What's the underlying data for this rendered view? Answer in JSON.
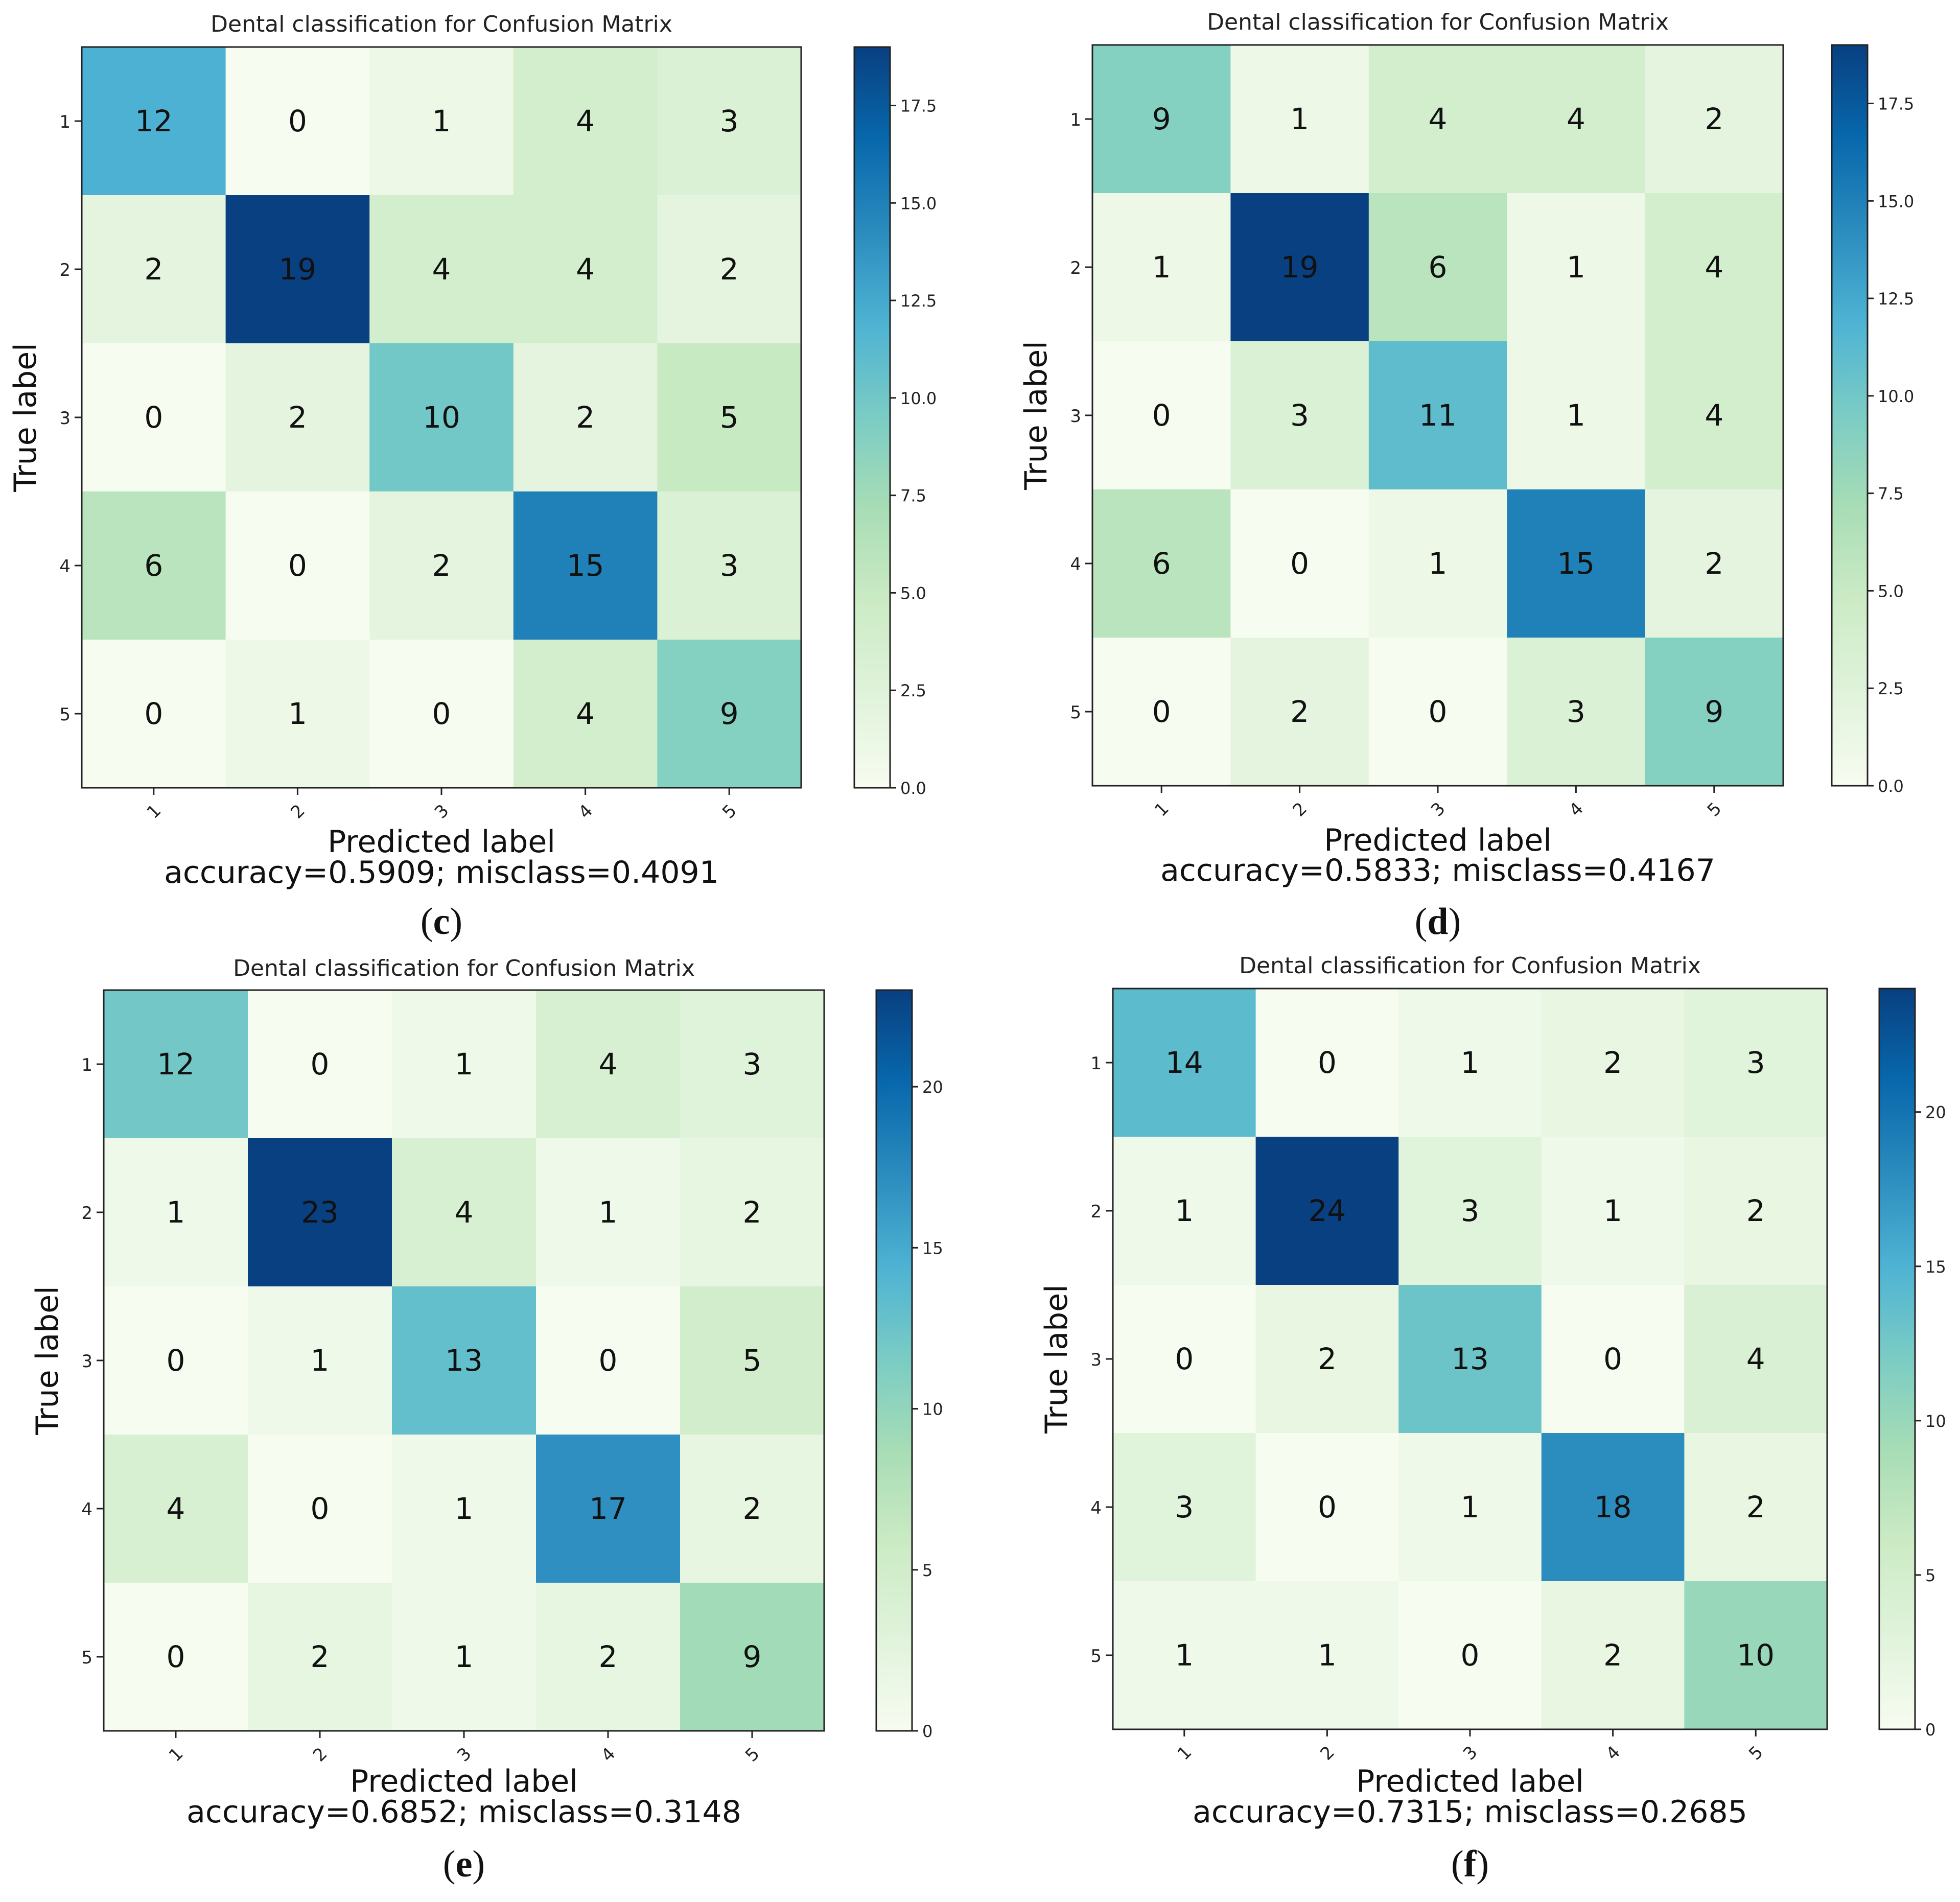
{
  "chart_data": [
    {
      "type": "heatmap",
      "panel": "(c)",
      "panel_letter": "c",
      "title": "Dental classification for Confusion Matrix",
      "xlabel": "Predicted label",
      "ylabel": "True label",
      "summary": "accuracy=0.5909; misclass=0.4091",
      "categories": [
        "1",
        "2",
        "3",
        "4",
        "5"
      ],
      "matrix": [
        [
          12,
          0,
          1,
          4,
          3
        ],
        [
          2,
          19,
          4,
          4,
          2
        ],
        [
          0,
          2,
          10,
          2,
          5
        ],
        [
          6,
          0,
          2,
          15,
          3
        ],
        [
          0,
          1,
          0,
          4,
          9
        ]
      ],
      "colorbar_max": 19,
      "colorbar_ticks": [
        "0.0",
        "2.5",
        "5.0",
        "7.5",
        "10.0",
        "12.5",
        "15.0",
        "17.5"
      ],
      "colorbar_tick_values": [
        0,
        2.5,
        5,
        7.5,
        10,
        12.5,
        15,
        17.5
      ],
      "colormap": [
        "#f7fcf0",
        "#e0f3db",
        "#ccebc5",
        "#a8ddb5",
        "#7bccc4",
        "#4eb3d3",
        "#2b8cbe",
        "#0868ac",
        "#084081"
      ],
      "grid": false
    },
    {
      "type": "heatmap",
      "panel": "(d)",
      "panel_letter": "d",
      "title": "Dental classification for Confusion Matrix",
      "xlabel": "Predicted label",
      "ylabel": "True label",
      "summary": "accuracy=0.5833; misclass=0.4167",
      "categories": [
        "1",
        "2",
        "3",
        "4",
        "5"
      ],
      "matrix": [
        [
          9,
          1,
          4,
          4,
          2
        ],
        [
          1,
          19,
          6,
          1,
          4
        ],
        [
          0,
          3,
          11,
          1,
          4
        ],
        [
          6,
          0,
          1,
          15,
          2
        ],
        [
          0,
          2,
          0,
          3,
          9
        ]
      ],
      "colorbar_max": 19,
      "colorbar_ticks": [
        "0.0",
        "2.5",
        "5.0",
        "7.5",
        "10.0",
        "12.5",
        "15.0",
        "17.5"
      ],
      "colorbar_tick_values": [
        0,
        2.5,
        5,
        7.5,
        10,
        12.5,
        15,
        17.5
      ],
      "colormap": [
        "#f7fcf0",
        "#e0f3db",
        "#ccebc5",
        "#a8ddb5",
        "#7bccc4",
        "#4eb3d3",
        "#2b8cbe",
        "#0868ac",
        "#084081"
      ],
      "grid": false
    },
    {
      "type": "heatmap",
      "panel": "(e)",
      "panel_letter": "e",
      "title": "Dental classification for Confusion Matrix",
      "xlabel": "Predicted label",
      "ylabel": "True label",
      "summary": "accuracy=0.6852; misclass=0.3148",
      "categories": [
        "1",
        "2",
        "3",
        "4",
        "5"
      ],
      "matrix": [
        [
          12,
          0,
          1,
          4,
          3
        ],
        [
          1,
          23,
          4,
          1,
          2
        ],
        [
          0,
          1,
          13,
          0,
          5
        ],
        [
          4,
          0,
          1,
          17,
          2
        ],
        [
          0,
          2,
          1,
          2,
          9
        ]
      ],
      "colorbar_max": 23,
      "colorbar_ticks": [
        "0",
        "5",
        "10",
        "15",
        "20"
      ],
      "colorbar_tick_values": [
        0,
        5,
        10,
        15,
        20
      ],
      "colormap": [
        "#f7fcf0",
        "#e0f3db",
        "#ccebc5",
        "#a8ddb5",
        "#7bccc4",
        "#4eb3d3",
        "#2b8cbe",
        "#0868ac",
        "#084081"
      ],
      "grid": false
    },
    {
      "type": "heatmap",
      "panel": "(f)",
      "panel_letter": "f",
      "title": "Dental classification for Confusion Matrix",
      "xlabel": "Predicted label",
      "ylabel": "True label",
      "summary": "accuracy=0.7315; misclass=0.2685",
      "categories": [
        "1",
        "2",
        "3",
        "4",
        "5"
      ],
      "matrix": [
        [
          14,
          0,
          1,
          2,
          3
        ],
        [
          1,
          24,
          3,
          1,
          2
        ],
        [
          0,
          2,
          13,
          0,
          4
        ],
        [
          3,
          0,
          1,
          18,
          2
        ],
        [
          1,
          1,
          0,
          2,
          10
        ]
      ],
      "colorbar_max": 24,
      "colorbar_ticks": [
        "0",
        "5",
        "10",
        "15",
        "20"
      ],
      "colorbar_tick_values": [
        0,
        5,
        10,
        15,
        20
      ],
      "colormap": [
        "#f7fcf0",
        "#e0f3db",
        "#ccebc5",
        "#a8ddb5",
        "#7bccc4",
        "#4eb3d3",
        "#2b8cbe",
        "#0868ac",
        "#084081"
      ],
      "grid": false
    }
  ]
}
